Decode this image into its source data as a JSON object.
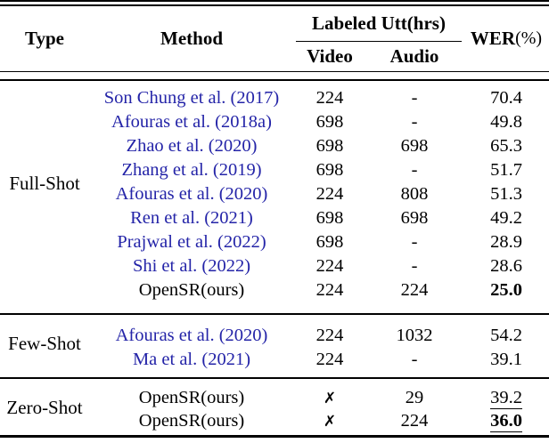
{
  "header": {
    "type": "Type",
    "method": "Method",
    "labeled_utt": "Labeled Utt(hrs)",
    "video": "Video",
    "audio": "Audio",
    "wer": "WER",
    "wer_suffix": "(%)"
  },
  "colors": {
    "citation_blue": "#2424a8",
    "text": "#000000",
    "rule": "#000000"
  },
  "icons": {
    "cross_mark": "✗"
  },
  "sections": [
    {
      "type": "Full-Shot",
      "rows": [
        {
          "method": "Son Chung et al. (2017)",
          "cite": true,
          "video": "224",
          "audio": "-",
          "wer": "70.4",
          "wer_bold": false,
          "wer_underline": false
        },
        {
          "method": "Afouras et al. (2018a)",
          "cite": true,
          "video": "698",
          "audio": "-",
          "wer": "49.8",
          "wer_bold": false,
          "wer_underline": false
        },
        {
          "method": "Zhao et al. (2020)",
          "cite": true,
          "video": "698",
          "audio": "698",
          "wer": "65.3",
          "wer_bold": false,
          "wer_underline": false
        },
        {
          "method": "Zhang et al. (2019)",
          "cite": true,
          "video": "698",
          "audio": "-",
          "wer": "51.7",
          "wer_bold": false,
          "wer_underline": false
        },
        {
          "method": "Afouras et al. (2020)",
          "cite": true,
          "video": "224",
          "audio": "808",
          "wer": "51.3",
          "wer_bold": false,
          "wer_underline": false
        },
        {
          "method": "Ren et al. (2021)",
          "cite": true,
          "video": "698",
          "audio": "698",
          "wer": "49.2",
          "wer_bold": false,
          "wer_underline": false
        },
        {
          "method": "Prajwal et al. (2022)",
          "cite": true,
          "video": "698",
          "audio": "-",
          "wer": "28.9",
          "wer_bold": false,
          "wer_underline": false
        },
        {
          "method": "Shi et al. (2022)",
          "cite": true,
          "video": "224",
          "audio": "-",
          "wer": "28.6",
          "wer_bold": false,
          "wer_underline": false
        },
        {
          "method": "OpenSR(ours)",
          "cite": false,
          "video": "224",
          "audio": "224",
          "wer": "25.0",
          "wer_bold": true,
          "wer_underline": false
        }
      ]
    },
    {
      "type": "Few-Shot",
      "rows": [
        {
          "method": "Afouras et al. (2020)",
          "cite": true,
          "video": "224",
          "audio": "1032",
          "wer": "54.2",
          "wer_bold": false,
          "wer_underline": false
        },
        {
          "method": "Ma et al. (2021)",
          "cite": true,
          "video": "224",
          "audio": "-",
          "wer": "39.1",
          "wer_bold": false,
          "wer_underline": false
        }
      ]
    },
    {
      "type": "Zero-Shot",
      "rows": [
        {
          "method": "OpenSR(ours)",
          "cite": false,
          "video": "✗",
          "audio": "29",
          "wer": "39.2",
          "wer_bold": false,
          "wer_underline": true
        },
        {
          "method": "OpenSR(ours)",
          "cite": false,
          "video": "✗",
          "audio": "224",
          "wer": "36.0",
          "wer_bold": true,
          "wer_underline": true
        }
      ]
    }
  ]
}
